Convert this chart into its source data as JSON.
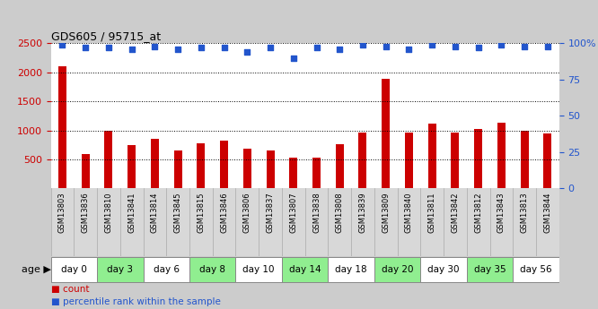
{
  "title": "GDS605 / 95715_at",
  "samples": [
    "GSM13803",
    "GSM13836",
    "GSM13810",
    "GSM13841",
    "GSM13814",
    "GSM13845",
    "GSM13815",
    "GSM13846",
    "GSM13806",
    "GSM13837",
    "GSM13807",
    "GSM13838",
    "GSM13808",
    "GSM13839",
    "GSM13809",
    "GSM13840",
    "GSM13811",
    "GSM13842",
    "GSM13812",
    "GSM13843",
    "GSM13813",
    "GSM13844"
  ],
  "counts": [
    2100,
    600,
    1000,
    750,
    860,
    650,
    780,
    820,
    690,
    660,
    530,
    530,
    760,
    970,
    1890,
    970,
    1110,
    970,
    1030,
    1140,
    1000,
    940
  ],
  "percentile_ranks": [
    99,
    97,
    97,
    96,
    98,
    96,
    97,
    97,
    94,
    97,
    90,
    97,
    96,
    99,
    98,
    96,
    99,
    98,
    97,
    99,
    98,
    98
  ],
  "bar_color": "#cc0000",
  "dot_color": "#2255cc",
  "ylim_left": [
    0,
    2500
  ],
  "ylim_right": [
    0,
    100
  ],
  "yticks_left": [
    500,
    1000,
    1500,
    2000,
    2500
  ],
  "yticks_right": [
    0,
    25,
    50,
    75,
    100
  ],
  "groups": [
    {
      "label": "day 0",
      "start": 0,
      "end": 1,
      "color": "#ffffff"
    },
    {
      "label": "day 3",
      "start": 2,
      "end": 3,
      "color": "#90ee90"
    },
    {
      "label": "day 6",
      "start": 4,
      "end": 5,
      "color": "#ffffff"
    },
    {
      "label": "day 8",
      "start": 6,
      "end": 7,
      "color": "#90ee90"
    },
    {
      "label": "day 10",
      "start": 8,
      "end": 9,
      "color": "#ffffff"
    },
    {
      "label": "day 14",
      "start": 10,
      "end": 11,
      "color": "#90ee90"
    },
    {
      "label": "day 18",
      "start": 12,
      "end": 13,
      "color": "#ffffff"
    },
    {
      "label": "day 20",
      "start": 14,
      "end": 15,
      "color": "#90ee90"
    },
    {
      "label": "day 30",
      "start": 16,
      "end": 17,
      "color": "#ffffff"
    },
    {
      "label": "day 35",
      "start": 18,
      "end": 19,
      "color": "#90ee90"
    },
    {
      "label": "day 56",
      "start": 20,
      "end": 21,
      "color": "#ffffff"
    }
  ],
  "age_label": "age",
  "legend_count_label": "count",
  "legend_pct_label": "percentile rank within the sample",
  "outer_bg": "#cccccc",
  "plot_bg": "#ffffff",
  "sample_box_bg": "#d8d8d8",
  "grid_linestyle": "dotted",
  "bar_width": 0.35
}
